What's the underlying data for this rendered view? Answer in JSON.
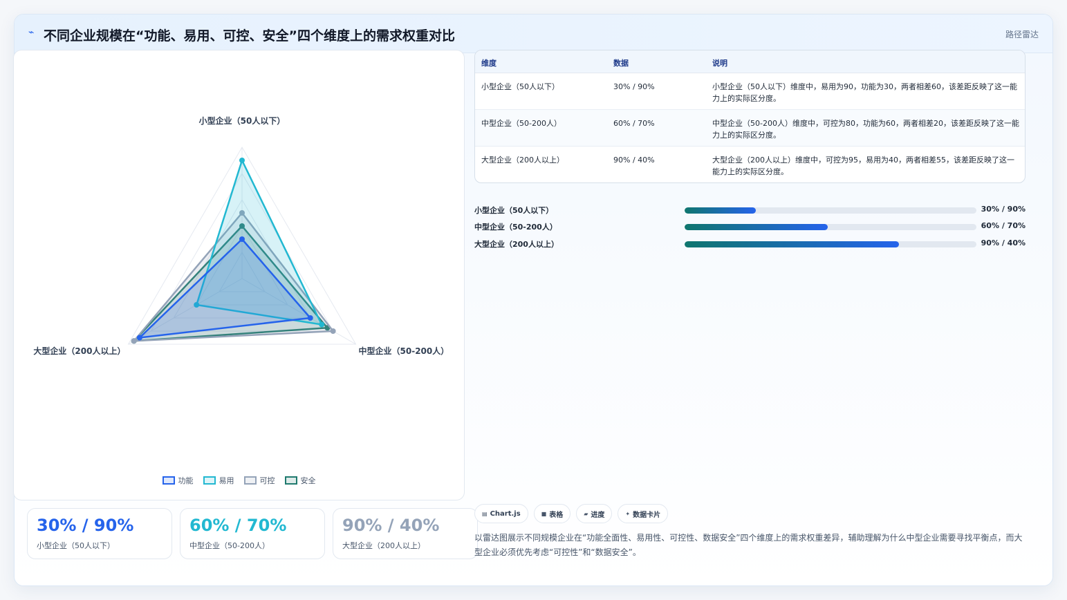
{
  "header": {
    "icon": "pulse-icon",
    "title": "不同企业规模在“功能、易用、可控、安全”四个维度上的需求权重对比",
    "tag": "路径雷达"
  },
  "chart_data": {
    "type": "radar",
    "axes": [
      "小型企业（50人以下）",
      "中型企业（50-200人）",
      "大型企业（200人以上）"
    ],
    "rmax": 100,
    "series": [
      {
        "name": "功能",
        "color": "#2563eb",
        "values": [
          30,
          60,
          90
        ]
      },
      {
        "name": "易用",
        "color": "#22b8d1",
        "values": [
          90,
          70,
          40
        ]
      },
      {
        "name": "可控",
        "color": "#94a3b8",
        "values": [
          50,
          80,
          95
        ]
      },
      {
        "name": "安全",
        "color": "#1f7a6e",
        "values": [
          40,
          75,
          95
        ]
      }
    ]
  },
  "stats": [
    {
      "value": "30% / 90%",
      "label": "小型企业（50人以下）",
      "color": "#2563eb"
    },
    {
      "value": "60% / 70%",
      "label": "中型企业（50-200人）",
      "color": "#22b8d1"
    },
    {
      "value": "90% / 40%",
      "label": "大型企业（200人以上）",
      "color": "#94a3b8"
    }
  ],
  "table": {
    "headers": [
      "维度",
      "数据",
      "说明"
    ],
    "rows": [
      {
        "dim": "小型企业（50人以下）",
        "data": "30% / 90%",
        "desc": "小型企业（50人以下）维度中，易用为90，功能为30，两者相差60，该差距反映了这一能力上的实际区分度。"
      },
      {
        "dim": "中型企业（50-200人）",
        "data": "60% / 70%",
        "desc": "中型企业（50-200人）维度中，可控为80，功能为60，两者相差20，该差距反映了这一能力上的实际区分度。"
      },
      {
        "dim": "大型企业（200人以上）",
        "data": "90% / 40%",
        "desc": "大型企业（200人以上）维度中，可控为95，易用为40，两者相差55，该差距反映了这一能力上的实际区分度。"
      }
    ]
  },
  "progress": [
    {
      "label": "小型企业（50人以下）",
      "value": "30% / 90%",
      "level": 0.245
    },
    {
      "label": "中型企业（50-200人）",
      "value": "60% / 70%",
      "level": 0.49
    },
    {
      "label": "大型企业（200人以上）",
      "value": "90% / 40%",
      "level": 0.735
    }
  ],
  "chips": [
    {
      "icon": "chart-icon",
      "glyph": "▤",
      "label": "Chart.js"
    },
    {
      "icon": "table-icon",
      "glyph": "■",
      "label": "表格"
    },
    {
      "icon": "progress-icon",
      "glyph": "▰",
      "label": "进度"
    },
    {
      "icon": "card-icon",
      "glyph": "✦",
      "label": "数据卡片"
    }
  ],
  "note": "以雷达图展示不同规模企业在“功能全面性、易用性、可控性、数据安全”四个维度上的需求权重差异，辅助理解为什么中型企业需要寻找平衡点，而大型企业必须优先考虑“可控性”和“数据安全”。"
}
